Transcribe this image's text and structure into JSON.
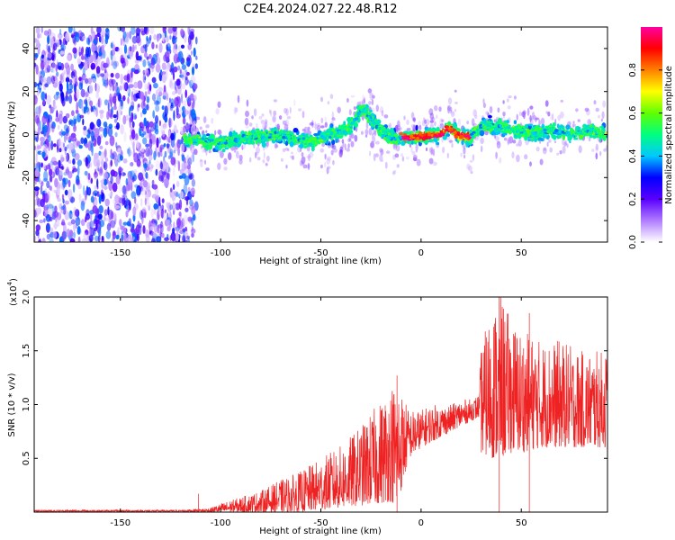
{
  "title": "C2E4.2024.027.22.48.R12",
  "chart_data": [
    {
      "type": "heatmap",
      "xlabel": "Height of straight line (km)",
      "ylabel": "Frequency (Hz)",
      "xlim": [
        -193,
        93
      ],
      "ylim": [
        -50,
        50
      ],
      "xticks": [
        -150,
        -100,
        -50,
        0,
        50
      ],
      "yticks": [
        -40,
        -20,
        0,
        20,
        40
      ],
      "grid": false,
      "description_of_values": "noise-dominated region for heights below about -118 km; signal band centered near 0 Hz from about -118 km to 93 km",
      "signal_band_center_hz": [
        {
          "x": -118,
          "y": -2
        },
        {
          "x": -100,
          "y": -4
        },
        {
          "x": -85,
          "y": -1
        },
        {
          "x": -70,
          "y": 0
        },
        {
          "x": -55,
          "y": -4
        },
        {
          "x": -45,
          "y": 0
        },
        {
          "x": -35,
          "y": 4
        },
        {
          "x": -29,
          "y": 12
        },
        {
          "x": -22,
          "y": 4
        },
        {
          "x": -15,
          "y": -2
        },
        {
          "x": -5,
          "y": -1
        },
        {
          "x": 0,
          "y": -1
        },
        {
          "x": 10,
          "y": 0
        },
        {
          "x": 14,
          "y": 3
        },
        {
          "x": 20,
          "y": -1
        },
        {
          "x": 25,
          "y": -1
        },
        {
          "x": 30,
          "y": 4
        },
        {
          "x": 45,
          "y": 3
        },
        {
          "x": 55,
          "y": 0
        },
        {
          "x": 65,
          "y": 2
        },
        {
          "x": 75,
          "y": 0
        },
        {
          "x": 85,
          "y": 2
        },
        {
          "x": 93,
          "y": 0
        }
      ],
      "peak_amplitude_region_km": [
        -10,
        25
      ],
      "colorbar": {
        "label": "Normalized spectral amplitude",
        "range": [
          0.0,
          1.0
        ],
        "ticks": [
          0.0,
          0.2,
          0.4,
          0.6,
          0.8
        ],
        "tick_labels": [
          "0.0",
          "0.2",
          "0.4",
          "0.6",
          "0.8"
        ],
        "colors": [
          "#ffffff",
          "#b07cff",
          "#5a00ff",
          "#0000ff",
          "#00c8ff",
          "#00ff80",
          "#60ff00",
          "#ffff00",
          "#ff8000",
          "#ff0000",
          "#ff00a0"
        ]
      }
    },
    {
      "type": "line",
      "xlabel": "Height of straight line (km)",
      "ylabel": "SNR (10 * v/v)",
      "y_multiplier": "(x10",
      "y_multiplier_exp": "4",
      "y_multiplier_close": ")",
      "xlim": [
        -193,
        93
      ],
      "ylim": [
        0,
        2.0
      ],
      "xticks": [
        -150,
        -100,
        -50,
        0,
        50
      ],
      "yticks": [
        0.5,
        1.0,
        1.5,
        2.0
      ],
      "ytick_labels": [
        "0.5",
        "1.0",
        "1.5",
        "2.0"
      ],
      "grid": false,
      "series": [
        {
          "color": "#ee2222",
          "envelope_x": [
            -193,
            -150,
            -120,
            -112,
            -105,
            -100,
            -90,
            -80,
            -70,
            -60,
            -50,
            -40,
            -30,
            -20,
            -15,
            -12,
            -6,
            0,
            5,
            10,
            15,
            20,
            25,
            29,
            30,
            35,
            40,
            45,
            50,
            60,
            70,
            80,
            93
          ],
          "envelope_low": [
            0.0,
            0.0,
            0.0,
            0.0,
            0.0,
            0.0,
            0.0,
            0.0,
            0.0,
            0.0,
            0.02,
            0.04,
            0.06,
            0.08,
            0.1,
            0.05,
            0.5,
            0.6,
            0.65,
            0.7,
            0.75,
            0.8,
            0.85,
            0.88,
            0.55,
            0.5,
            0.5,
            0.55,
            0.55,
            0.6,
            0.6,
            0.6,
            0.6
          ],
          "envelope_high": [
            0.02,
            0.02,
            0.02,
            0.03,
            0.04,
            0.08,
            0.14,
            0.2,
            0.3,
            0.38,
            0.5,
            0.62,
            0.8,
            1.05,
            1.2,
            1.25,
            0.95,
            0.95,
            1.0,
            1.0,
            1.0,
            1.05,
            1.05,
            1.1,
            1.55,
            1.9,
            2.0,
            1.8,
            1.7,
            1.6,
            1.6,
            1.5,
            1.5
          ],
          "spikes": [
            {
              "x": -111,
              "y": 0.17
            },
            {
              "x": -12,
              "y": 1.27
            },
            {
              "x": 39,
              "y": 2.0
            },
            {
              "x": 54,
              "y": 1.85
            }
          ]
        }
      ]
    }
  ]
}
